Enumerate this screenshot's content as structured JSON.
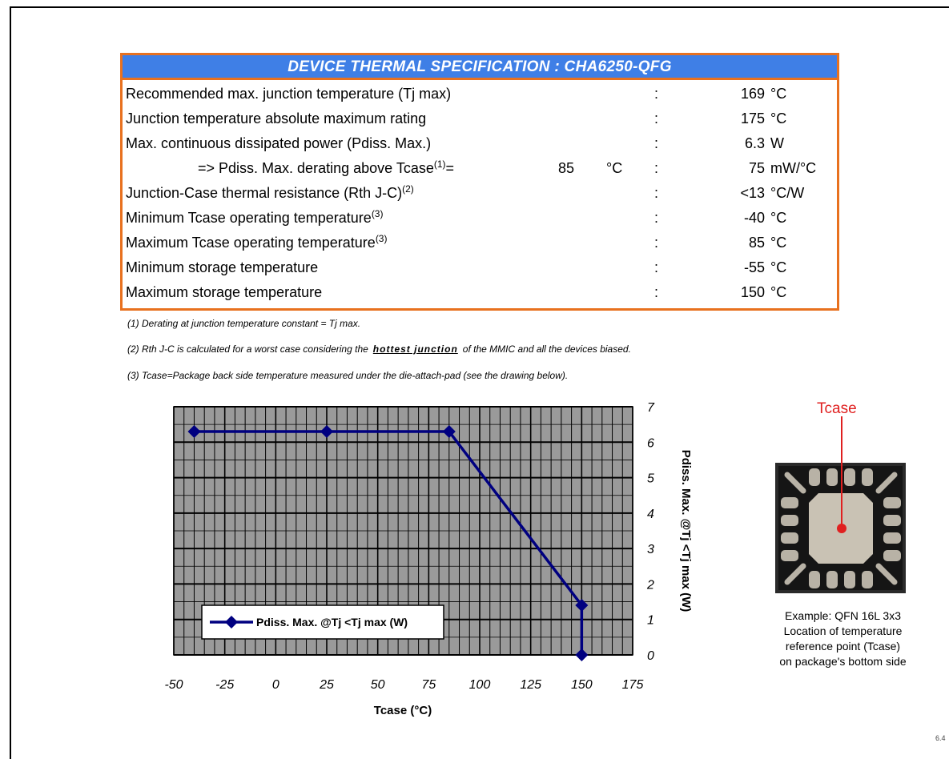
{
  "spec": {
    "title": "DEVICE THERMAL SPECIFICATION : CHA6250-QFG",
    "rows": [
      {
        "label": "Recommended max. junction temperature (Tj max)",
        "sup": "",
        "colon": ":",
        "value": "169",
        "unit": "°C"
      },
      {
        "label": "Junction temperature absolute maximum rating",
        "sup": "",
        "colon": ":",
        "value": "175",
        "unit": "°C"
      },
      {
        "label": "Max. continuous dissipated power (Pdiss. Max.)",
        "sup": "",
        "colon": ":",
        "value": "6.3",
        "unit": "W"
      },
      {
        "label": "=> Pdiss. Max. derating above Tcase",
        "sup": "(1)",
        "eq": "=",
        "mid_value": "85",
        "mid_unit": "°C",
        "colon": ":",
        "value": "75",
        "unit": "mW/°C"
      },
      {
        "label": "Junction-Case thermal resistance (Rth J-C)",
        "sup": "(2)",
        "colon": ":",
        "value": "<13",
        "unit": "°C/W"
      },
      {
        "label": "Minimum Tcase operating temperature",
        "sup": "(3)",
        "colon": ":",
        "value": "-40",
        "unit": "°C"
      },
      {
        "label": "Maximum Tcase operating temperature",
        "sup": "(3)",
        "colon": ":",
        "value": "85",
        "unit": "°C"
      },
      {
        "label": "Minimum storage temperature",
        "sup": "",
        "colon": ":",
        "value": "-55",
        "unit": "°C"
      },
      {
        "label": "Maximum storage temperature",
        "sup": "",
        "colon": ":",
        "value": "150",
        "unit": "°C"
      }
    ]
  },
  "notes": {
    "n1": "(1) Derating at junction temperature constant = Tj max.",
    "n2_before": "(2) Rth J-C is calculated for a worst case considering the",
    "n2_hot": "hottest junction",
    "n2_after": "of the MMIC and all the devices biased.",
    "n3": "(3) Tcase=Package back side temperature measured under the die-attach-pad (see the drawing below)."
  },
  "chart_data": {
    "type": "line",
    "xlabel": "Tcase (°C)",
    "ylabel": "Pdiss. Max. @Tj <Tj max (W)",
    "xlim": [
      -50,
      175
    ],
    "ylim": [
      0,
      7
    ],
    "x_ticks": [
      "-50",
      "-25",
      "0",
      "25",
      "50",
      "75",
      "100",
      "125",
      "150",
      "175"
    ],
    "y_ticks": [
      "0",
      "1",
      "2",
      "3",
      "4",
      "5",
      "6",
      "7"
    ],
    "grid": true,
    "legend": "bottom-left",
    "series": [
      {
        "name": "Pdiss. Max. @Tj <Tj max (W)",
        "color": "#000080",
        "points": [
          [
            -40,
            6.3
          ],
          [
            25,
            6.3
          ],
          [
            85,
            6.3
          ],
          [
            150,
            1.4
          ],
          [
            150,
            0
          ]
        ]
      }
    ]
  },
  "package": {
    "tcase_label": "Tcase",
    "caption_lines": [
      "Example: QFN 16L 3x3",
      "Location of temperature",
      "reference point (Tcase)",
      "on package's bottom side"
    ]
  },
  "page_number": "6.4"
}
